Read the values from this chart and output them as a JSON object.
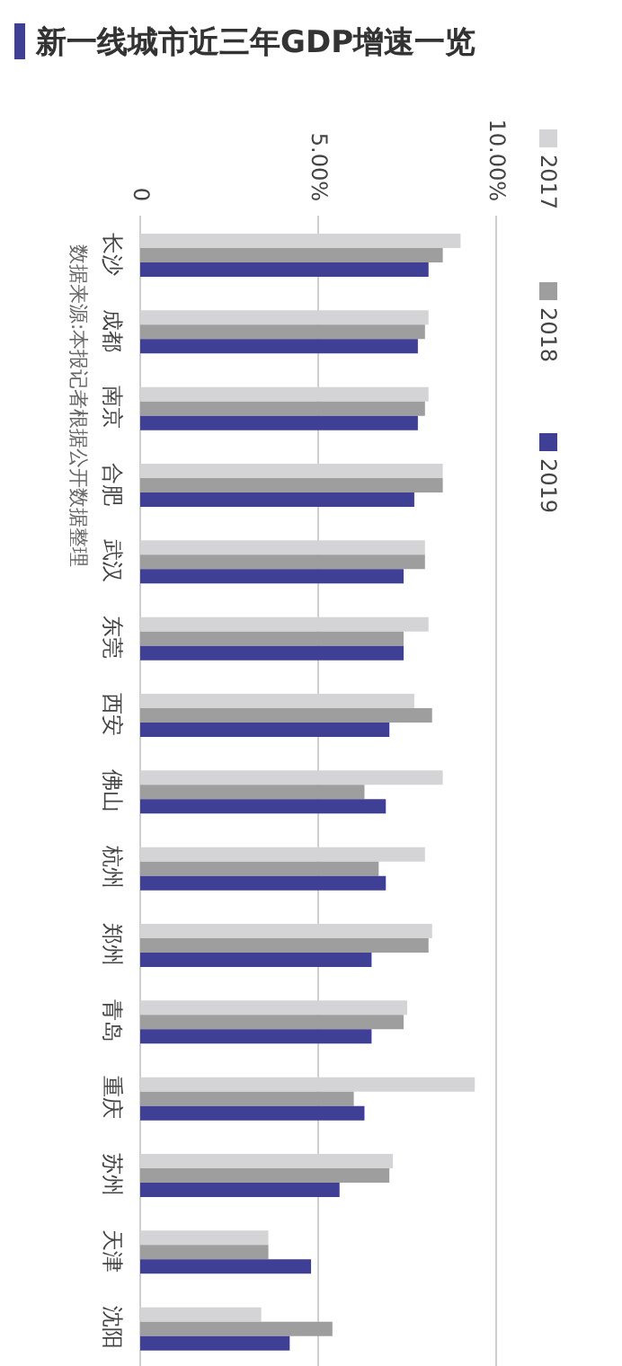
{
  "chart_data": {
    "type": "bar",
    "orientation": "horizontal",
    "title": "新一线城市近三年GDP增速一览",
    "annotations": [
      "数据来源:本报记者根据公开数据整理"
    ],
    "categories": [
      "长沙",
      "成都",
      "南京",
      "合肥",
      "武汉",
      "东莞",
      "西安",
      "佛山",
      "杭州",
      "郑州",
      "青岛",
      "重庆",
      "苏州",
      "天津",
      "沈阳"
    ],
    "series": [
      {
        "name": "2017",
        "color": "#d4d4d6",
        "values": [
          9.0,
          8.1,
          8.1,
          8.5,
          8.0,
          8.1,
          7.7,
          8.5,
          8.0,
          8.2,
          7.5,
          9.4,
          7.1,
          3.6,
          3.4
        ]
      },
      {
        "name": "2018",
        "color": "#9e9e9e",
        "values": [
          8.5,
          8.0,
          8.0,
          8.5,
          8.0,
          7.4,
          8.2,
          6.3,
          6.7,
          8.1,
          7.4,
          6.0,
          7.0,
          3.6,
          5.4
        ]
      },
      {
        "name": "2019",
        "color": "#3f3f96",
        "values": [
          8.1,
          7.8,
          7.8,
          7.7,
          7.4,
          7.4,
          7.0,
          6.9,
          6.9,
          6.5,
          6.5,
          6.3,
          5.6,
          4.8,
          4.2
        ]
      }
    ],
    "xlim": [
      0,
      10
    ],
    "xticks": [
      0,
      {
        "value": 5,
        "label": "5.00%"
      },
      {
        "value": 10,
        "label": "10.00%"
      }
    ],
    "grid": "x",
    "legend": "right"
  }
}
